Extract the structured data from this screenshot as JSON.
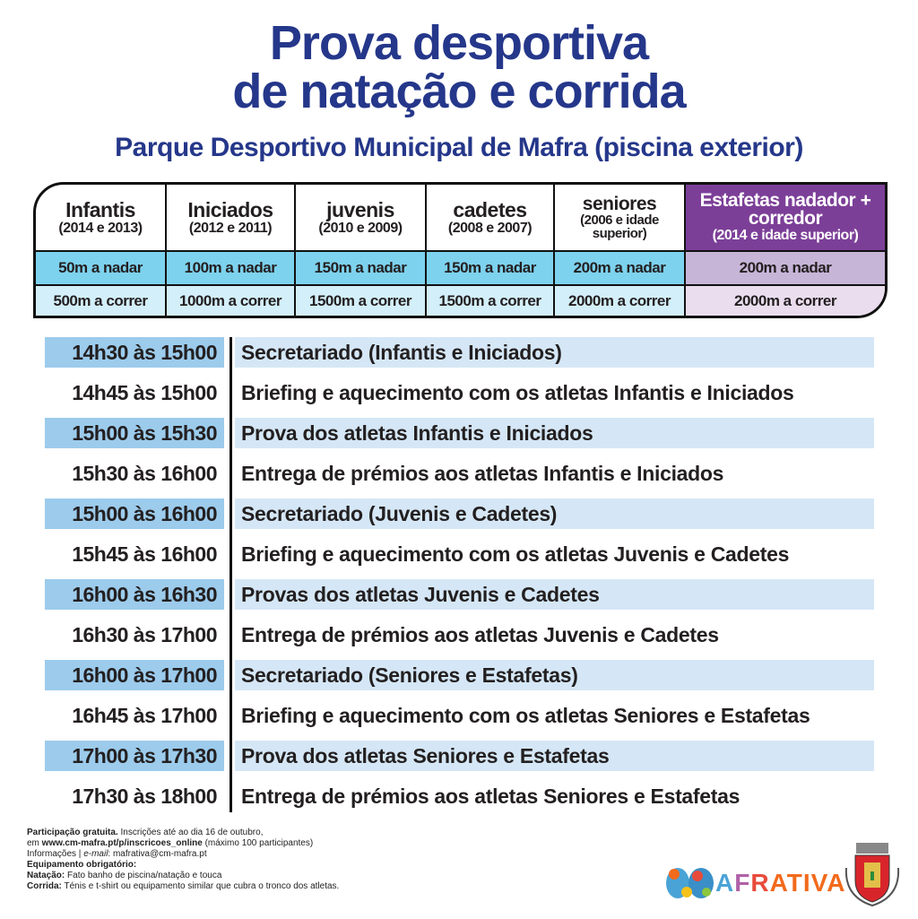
{
  "title": {
    "line1": "Prova desportiva",
    "line2": "de natação e corrida",
    "subtitle": "Parque Desportivo Municipal de Mafra (piscina exterior)"
  },
  "categories": [
    {
      "name": "Infantis",
      "years": "(2014 e 2013)",
      "swim": "50m a nadar",
      "run": "500m a correr"
    },
    {
      "name": "Iniciados",
      "years": "(2012 e 2011)",
      "swim": "100m a nadar",
      "run": "1000m a correr"
    },
    {
      "name": "juvenis",
      "years": "(2010 e 2009)",
      "swim": "150m a nadar",
      "run": "1500m a correr"
    },
    {
      "name": "cadetes",
      "years": "(2008 e 2007)",
      "swim": "150m a nadar",
      "run": "1500m a correr"
    },
    {
      "name": "seniores",
      "years": "(2006 e idade superior)",
      "swim": "200m a nadar",
      "run": "2000m a correr"
    },
    {
      "name": "Estafetas  nadador + corredor",
      "years": "(2014 e idade superior)",
      "swim": "200m a nadar",
      "run": "2000m a correr"
    }
  ],
  "schedule": [
    {
      "time": "14h30 às 15h00",
      "desc": "Secretariado (Infantis e Iniciados)"
    },
    {
      "time": "14h45 às 15h00",
      "desc": "Briefing e aquecimento com os atletas Infantis e Iniciados"
    },
    {
      "time": "15h00 às 15h30",
      "desc": "Prova dos atletas Infantis e Iniciados"
    },
    {
      "time": "15h30 às 16h00",
      "desc": "Entrega de prémios aos atletas Infantis e Iniciados"
    },
    {
      "time": "15h00 às 16h00",
      "desc": "Secretariado (Juvenis e Cadetes)"
    },
    {
      "time": "15h45 às 16h00",
      "desc": "Briefing e aquecimento com os atletas Juvenis e Cadetes"
    },
    {
      "time": "16h00 às 16h30",
      "desc": "Provas dos atletas Juvenis e Cadetes"
    },
    {
      "time": "16h30 às 17h00",
      "desc": "Entrega de prémios aos atletas Juvenis e Cadetes"
    },
    {
      "time": "16h00 às 17h00",
      "desc": "Secretariado (Seniores e Estafetas)"
    },
    {
      "time": "16h45 às 17h00",
      "desc": "Briefing e aquecimento com os atletas Seniores e Estafetas"
    },
    {
      "time": "17h00 às 17h30",
      "desc": "Prova dos atletas Seniores e Estafetas"
    },
    {
      "time": "17h30 às 18h00",
      "desc": "Entrega de prémios aos atletas Seniores e Estafetas"
    }
  ],
  "footer": {
    "l1b": "Participação gratuita.",
    "l1": " Inscrições até ao dia 16 de outubro,",
    "l2a": "em ",
    "l2b": "www.cm-mafra.pt/p/inscricoes_online",
    "l2": " (máximo 100 participantes)",
    "l3a": "Informações | ",
    "l3i": "e-mail",
    "l3": ": mafrativa@cm-mafra.pt",
    "l4b": "Equipamento obrigatório:",
    "l5b": "Natação:",
    "l5": " Fato banho de piscina/natação e touca",
    "l6b": "Corrida:",
    "l6": " Ténis e t-shirt ou equipamento similar que cubra o tronco dos atletas."
  },
  "logos": {
    "mafrativa": "AFRATIVA",
    "crest": "Município de Mafra"
  },
  "colors": {
    "title": "#25378a",
    "swim": "#7dd2ee",
    "run": "#d3eff9",
    "relay": "#7c3f98",
    "time_highlight": "#9ccbec",
    "row_highlight": "#d5e7f6"
  }
}
